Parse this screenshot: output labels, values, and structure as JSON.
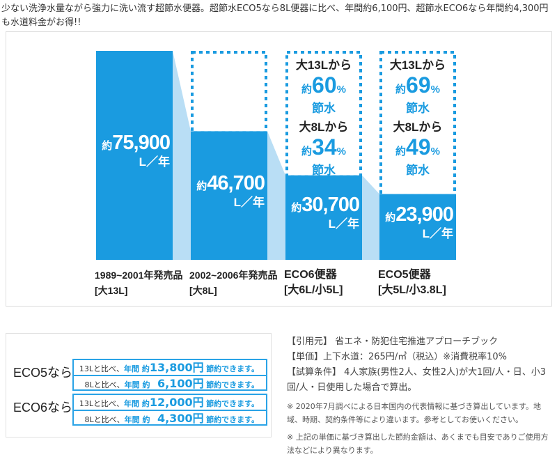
{
  "intro": "少ない洗浄水量ながら強力に洗い流す超節水便器。超節水ECO5なら8L便器に比べ、年間約6,100円、超節水ECO6なら年間約4,300円も水道料金がお得!!",
  "colors": {
    "bar": "#1a9be0",
    "connector": "#b9def5",
    "dotted": "#1a9be0"
  },
  "chart_data": {
    "type": "bar",
    "unit": "L／年",
    "value_prefix": "約",
    "categories": [
      "1989~2001年発売品",
      "2002~2006年発売品",
      "ECO6便器",
      "ECO5便器"
    ],
    "sublabels": [
      "[大13L]",
      "[大8L]",
      "[大6L/小5L]",
      "[大5L/小3.8L]"
    ],
    "values": [
      75900,
      46700,
      30700,
      23900
    ],
    "value_labels": [
      "75,900",
      "46,700",
      "30,700",
      "23,900"
    ],
    "savings": [
      null,
      null,
      [
        {
          "from": "大13Lから",
          "prefix": "約",
          "pct": "60",
          "sign": "%",
          "label": "節水"
        },
        {
          "from": "大8Lから",
          "prefix": "約",
          "pct": "34",
          "sign": "%",
          "label": "節水"
        }
      ],
      [
        {
          "from": "大13Lから",
          "prefix": "約",
          "pct": "69",
          "sign": "%",
          "label": "節水"
        },
        {
          "from": "大8Lから",
          "prefix": "約",
          "pct": "49",
          "sign": "%",
          "label": "節水"
        }
      ]
    ]
  },
  "saving_table": [
    {
      "label": "ECO5なら",
      "rows": [
        {
          "base": "13Lと比べ、",
          "year": "年間 約",
          "amount": "13,800円",
          "suffix": "節約できます。"
        },
        {
          "base": "8Lと比べ、",
          "year": "年間 約",
          "amount": "6,100円",
          "suffix": "節約できます。"
        }
      ]
    },
    {
      "label": "ECO6なら",
      "rows": [
        {
          "base": "13Lと比べ、",
          "year": "年間 約",
          "amount": "12,000円",
          "suffix": "節約できます。"
        },
        {
          "base": "8Lと比べ、",
          "year": "年間 約",
          "amount": "4,300円",
          "suffix": "節約できます。"
        }
      ]
    }
  ],
  "notes": {
    "source": "【引用元】 省エネ・防犯住宅推進アプローチブック",
    "price": "【単価】上下水道：265円/㎥（税込）※消費税率10%",
    "conditions": "【試算条件】 4人家族(男性2人、女性2人)が大1回/人・日、小3回/人・日使用した場合で算出。",
    "note1": "※ 2020年7月調べによる日本国内の代表情報に基づき算出しています。地域、時期、契約条件等により違います。参考としてお使いください。",
    "note2": "※ 上記の単価に基づき算出した節約金額は、あくまでも目安でありご使用方法などにより異なります。"
  }
}
